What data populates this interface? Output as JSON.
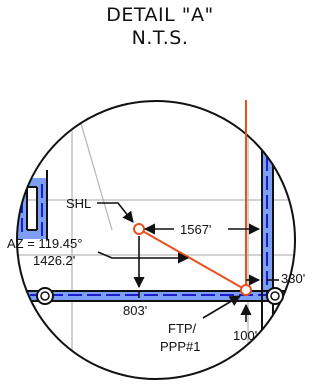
{
  "detail": {
    "title": "DETAIL \"A\"",
    "subtitle": "N.T.S."
  },
  "labels": {
    "shl": "SHL",
    "distance_1567": "1567'",
    "azimuth": "AZ = 119.45°",
    "distance_1426": "1426.2'",
    "distance_330": "330'",
    "distance_803": "803'",
    "ftp": "FTP/",
    "ppp": "PPP#1",
    "distance_100": "100'"
  },
  "colors": {
    "wellpath": "#e8501e",
    "lease_fill": "#7d9ff5",
    "lease_dash": "#1c1ccc",
    "linework": "#111111",
    "grid": "#b9b9b9"
  }
}
